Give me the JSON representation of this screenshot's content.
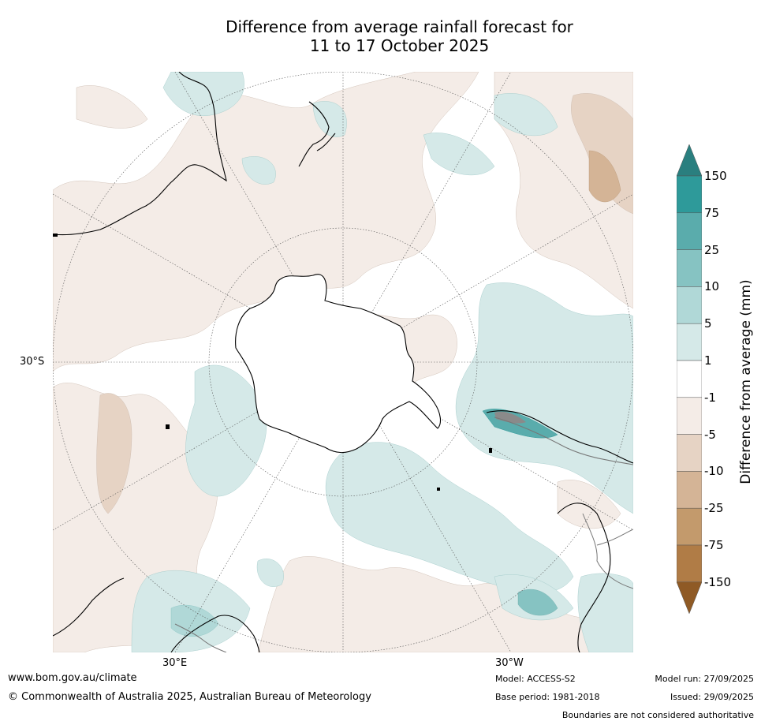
{
  "title_line1": "Difference from average rainfall forecast for",
  "title_line2": "11 to 17 October 2025",
  "map": {
    "lat_label": "30°S",
    "lon_labels": [
      "30°E",
      "30°W"
    ]
  },
  "legend": {
    "title": "Difference from average (mm)",
    "ticks": [
      "150",
      "75",
      "25",
      "10",
      "5",
      "1",
      "-1",
      "-5",
      "-10",
      "-25",
      "-75",
      "-150"
    ],
    "colors": {
      "over": "#2a7f7f",
      "c75_150": "#2e9a9a",
      "c25_75": "#5aacac",
      "c10_25": "#86c3c2",
      "c5_10": "#b0d8d7",
      "c1_5": "#d5e9e8",
      "neutral": "#ffffff",
      "n1_5": "#f4ece7",
      "n5_10": "#e6d3c4",
      "n10_25": "#d4b496",
      "n25_75": "#c39a6c",
      "n75_150": "#b07c46",
      "under": "#8f5a25"
    }
  },
  "footer": {
    "website": "www.bom.gov.au/climate",
    "copyright": "© Commonwealth of Australia 2025, Australian Bureau of Meteorology",
    "model": "Model: ACCESS-S2",
    "base_period": "Base period: 1981-2018",
    "model_run": "Model run: 27/09/2025",
    "issued": "Issued: 29/09/2025",
    "disclaimer": "Boundaries are not considered authoritative"
  }
}
